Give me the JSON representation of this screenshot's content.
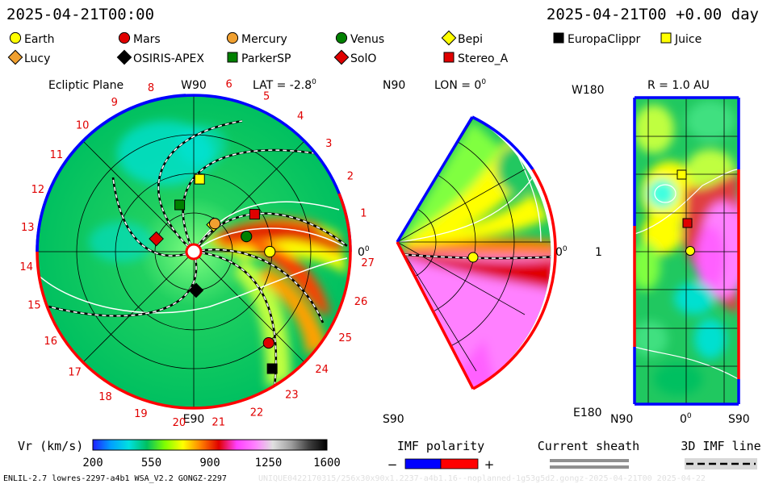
{
  "header": {
    "left_time": "2025-04-21T00:00",
    "right_time": "2025-04-21T00 +0.00 day"
  },
  "legend": {
    "row1": [
      {
        "name": "Earth",
        "shape": "circle",
        "fill": "#ffff00"
      },
      {
        "name": "Mars",
        "shape": "circle",
        "fill": "#e00000"
      },
      {
        "name": "Mercury",
        "shape": "circle",
        "fill": "#f0a030"
      },
      {
        "name": "Venus",
        "shape": "circle",
        "fill": "#008000"
      },
      {
        "name": "Bepi",
        "shape": "diamond",
        "fill": "#ffff00"
      },
      {
        "name": "EuropaClippr",
        "shape": "square",
        "fill": "#000000"
      },
      {
        "name": "Juice",
        "shape": "square",
        "fill": "#ffff00"
      }
    ],
    "row2": [
      {
        "name": "Lucy",
        "shape": "diamond",
        "fill": "#f0a030"
      },
      {
        "name": "OSIRIS-APEX",
        "shape": "diamond",
        "fill": "#000000"
      },
      {
        "name": "ParkerSP",
        "shape": "square",
        "fill": "#008000"
      },
      {
        "name": "SolO",
        "shape": "diamond",
        "fill": "#e00000"
      },
      {
        "name": "Stereo_A",
        "shape": "square",
        "fill": "#e00000"
      }
    ]
  },
  "panels": {
    "ecliptic": {
      "title": "Ecliptic Plane",
      "top_label": "W90",
      "lat_label": "LAT = -2.8",
      "lat_sup": "0",
      "bottom_label": "E90",
      "right_label": "0",
      "right_sup": "0",
      "sector_numbers": [
        "1",
        "2",
        "3",
        "4",
        "5",
        "6",
        "8",
        "9",
        "10",
        "11",
        "12",
        "13",
        "14",
        "15",
        "16",
        "17",
        "18",
        "19",
        "20",
        "21",
        "22",
        "23",
        "24",
        "25",
        "26",
        "27"
      ]
    },
    "meridional": {
      "top_left": "N90",
      "lon_label": "LON = 0",
      "lon_sup": "0",
      "right_label": "0",
      "right_sup": "0",
      "bottom_left": "S90"
    },
    "latlon": {
      "top_left": "W180",
      "r_label": "R = 1.0 AU",
      "mid_left": "1",
      "bottom_left": "E180",
      "bottom_n": "N90",
      "bottom_zero": "0",
      "bottom_zero_sup": "0",
      "bottom_s": "S90"
    }
  },
  "colorbar": {
    "label": "Vr (km/s)",
    "ticks": [
      "200",
      "550",
      "900",
      "1250",
      "1600"
    ],
    "stops": [
      "#2020ff",
      "#00a0ff",
      "#00e0e0",
      "#00c060",
      "#80ff00",
      "#ffff00",
      "#ff8000",
      "#e00000",
      "#ff40ff",
      "#ff80ff",
      "#e0e0e0",
      "#a0a0a0",
      "#404040",
      "#000000"
    ]
  },
  "imf_polarity": {
    "label": "IMF polarity",
    "minus": "−",
    "plus": "+",
    "neg_color": "#0000ff",
    "pos_color": "#ff0000"
  },
  "current_sheath": {
    "label": "Current sheath",
    "color": "#909090"
  },
  "imf_line": {
    "label": "3D IMF line"
  },
  "footer": {
    "left": "ENLIL-2.7 lowres-2297-a4b1 WSA_V2.2 GONGZ-2297",
    "right": "UNIQUE0422170315/256x30x90x1.2237-a4b1.16--noplanned-1g53g5d2.gongz-2025-04-21T00   2025-04-22"
  },
  "chart_data": {
    "type": "heatmap",
    "quantity": "Vr (km/s)",
    "colorbar_range": [
      200,
      1600
    ],
    "colorbar_ticks": [
      200,
      550,
      900,
      1250,
      1600
    ],
    "panels": [
      "Ecliptic Plane",
      "LON = 0",
      "R = 1.0 AU"
    ],
    "ecliptic_markers": [
      {
        "name": "Juice",
        "x": 0.05,
        "y": 0.62
      },
      {
        "name": "ParkerSP",
        "x": -0.12,
        "y": 0.4
      },
      {
        "name": "Bepi",
        "x": 0.17,
        "y": 0.23
      },
      {
        "name": "Mercury",
        "x": 0.18,
        "y": 0.24
      },
      {
        "name": "Stereo_A",
        "x": 0.52,
        "y": 0.32
      },
      {
        "name": "Venus",
        "x": 0.45,
        "y": 0.13
      },
      {
        "name": "Earth",
        "x": 0.65,
        "y": 0.0
      },
      {
        "name": "SolO",
        "x": -0.32,
        "y": 0.11
      },
      {
        "name": "OSIRIS-APEX",
        "x": 0.02,
        "y": -0.33
      },
      {
        "name": "Mars",
        "x": 0.64,
        "y": -0.78
      },
      {
        "name": "EuropaClippr",
        "x": 0.67,
        "y": -1.0
      }
    ]
  }
}
